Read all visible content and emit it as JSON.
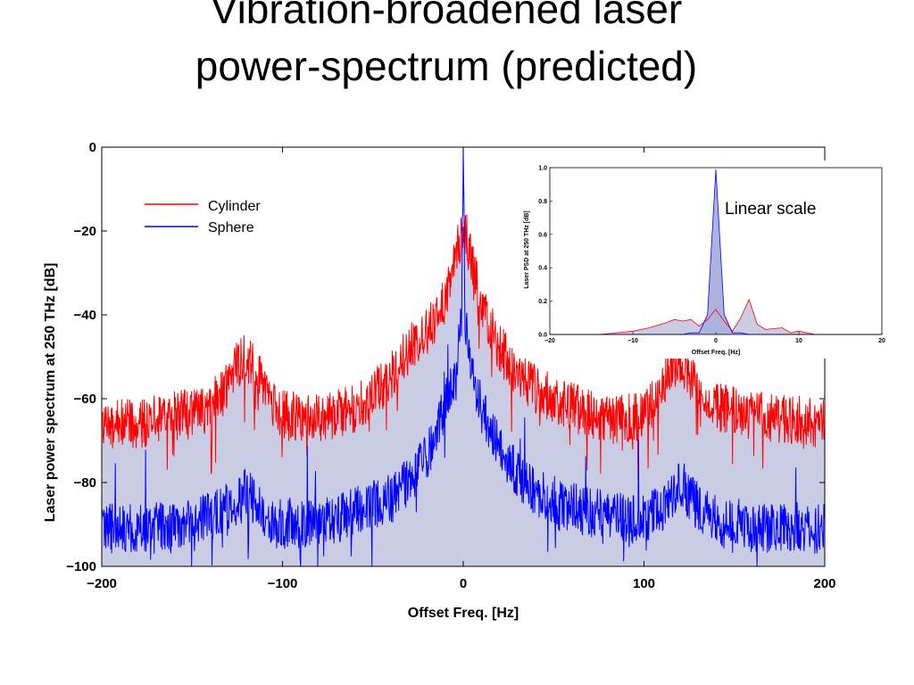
{
  "slide": {
    "title_line1": "Vibration-broadened laser",
    "title_line2": "power-spectrum (predicted)"
  },
  "colors": {
    "cylinder": "#ff0000",
    "sphere": "#0000ff",
    "sphere_fill": "#c9cce3",
    "inset_sphere_fill": "#aeb3dd"
  },
  "chart_data": [
    {
      "type": "line",
      "xlabel": "Offset Freq. [Hz]",
      "ylabel": "Laser power spectrum at 250 THz [dB]",
      "xlim": [
        -200,
        200
      ],
      "ylim": [
        -100,
        0
      ],
      "xticks": [
        -200,
        -100,
        0,
        100,
        200
      ],
      "xtick_labels": [
        "−200",
        "−100",
        "0",
        "100",
        "200"
      ],
      "yticks": [
        0,
        -20,
        -40,
        -60,
        -80,
        -100
      ],
      "ytick_labels": [
        "0",
        "−20",
        "−40",
        "−60",
        "−80",
        "−100"
      ],
      "legend_position": "top-left",
      "series": [
        {
          "name": "Cylinder",
          "x": [
            -200,
            -180,
            -160,
            -140,
            -130,
            -125,
            -120,
            -115,
            -110,
            -100,
            -80,
            -60,
            -40,
            -30,
            -20,
            -10,
            -5,
            0,
            5,
            10,
            20,
            30,
            40,
            60,
            80,
            100,
            110,
            115,
            120,
            125,
            130,
            140,
            160,
            180,
            200
          ],
          "y": [
            -66,
            -66,
            -64,
            -62,
            -56,
            -52,
            -50,
            -53,
            -58,
            -64,
            -65,
            -62,
            -55,
            -48,
            -44,
            -36,
            -28,
            -18,
            -28,
            -38,
            -48,
            -54,
            -58,
            -62,
            -65,
            -64,
            -58,
            -52,
            -50,
            -54,
            -58,
            -62,
            -64,
            -65,
            -66
          ]
        },
        {
          "name": "Sphere",
          "x": [
            -200,
            -180,
            -160,
            -140,
            -130,
            -125,
            -120,
            -115,
            -110,
            -100,
            -80,
            -60,
            -40,
            -30,
            -20,
            -10,
            -5,
            -1,
            0,
            1,
            5,
            10,
            20,
            30,
            40,
            60,
            80,
            100,
            110,
            115,
            120,
            125,
            130,
            140,
            160,
            180,
            200
          ],
          "y": [
            -91,
            -91,
            -90,
            -88,
            -86,
            -84,
            -82,
            -85,
            -88,
            -90,
            -90,
            -87,
            -84,
            -80,
            -74,
            -62,
            -54,
            -42,
            0,
            -42,
            -54,
            -62,
            -72,
            -78,
            -82,
            -86,
            -88,
            -89,
            -86,
            -83,
            -80,
            -83,
            -86,
            -89,
            -91,
            -91,
            -91
          ]
        }
      ],
      "annotations": []
    },
    {
      "type": "area",
      "xlabel": "Offset Freq. [Hz]",
      "ylabel": "Laser PSD at 250 THz [dB]",
      "xlim": [
        -20,
        20
      ],
      "ylim": [
        0,
        1.0
      ],
      "xticks": [
        -20,
        -10,
        0,
        10,
        20
      ],
      "xtick_labels": [
        "−20",
        "−10",
        "0",
        "10",
        "20"
      ],
      "yticks": [
        0,
        0.2,
        0.4,
        0.6,
        0.8,
        1.0
      ],
      "ytick_labels": [
        "0.0",
        "0.2",
        "0.4",
        "0.6",
        "0.8",
        "1.0"
      ],
      "annotation": "Linear scale",
      "series": [
        {
          "name": "Cylinder",
          "x": [
            -20,
            -14,
            -12,
            -10,
            -8,
            -6,
            -5,
            -4,
            -3,
            -2,
            -1,
            0,
            1,
            2,
            3,
            4,
            5,
            6,
            8,
            9,
            10,
            12,
            20
          ],
          "y": [
            0,
            0,
            0.01,
            0.02,
            0.04,
            0.07,
            0.09,
            0.08,
            0.09,
            0.05,
            0.09,
            0.15,
            0.08,
            0.02,
            0.1,
            0.21,
            0.06,
            0.03,
            0.04,
            0.01,
            0.02,
            0,
            0
          ]
        },
        {
          "name": "Sphere",
          "x": [
            -20,
            -6,
            -4,
            -3,
            -2,
            -1,
            0,
            1,
            2,
            3,
            4,
            6,
            20
          ],
          "y": [
            0,
            0,
            0,
            0.01,
            0.01,
            0.12,
            0.99,
            0.12,
            0.01,
            0.01,
            0,
            0,
            0
          ]
        }
      ]
    }
  ]
}
